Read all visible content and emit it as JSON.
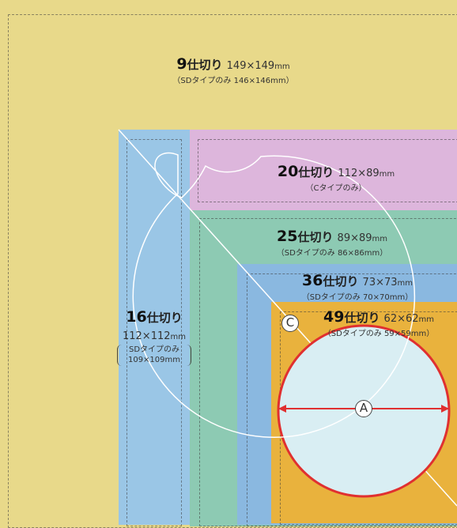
{
  "panels": [
    {
      "id": "p9",
      "count": "9",
      "label": "仕切り",
      "size": "149×149",
      "unit": "mm",
      "note": "（SDタイプのみ 146×146mm）",
      "color": "#ecdc86"
    },
    {
      "id": "p20",
      "count": "20",
      "label": "仕切り",
      "size": "112×89",
      "unit": "mm",
      "note": "（Cタイプのみ）",
      "color": "#ddb6dc"
    },
    {
      "id": "p25",
      "count": "25",
      "label": "仕切り",
      "size": "89×89",
      "unit": "mm",
      "note": "（SDタイプのみ 86×86mm）",
      "color": "#8dcab3"
    },
    {
      "id": "p36",
      "count": "36",
      "label": "仕切り",
      "size": "73×73",
      "unit": "mm",
      "note": "（SDタイプのみ 70×70mm）",
      "color": "#8ab8e0"
    },
    {
      "id": "p49",
      "count": "49",
      "label": "仕切り",
      "size": "62×62",
      "unit": "mm",
      "note": "（SDタイプのみ 59×59mm）",
      "color": "#e9b23d"
    },
    {
      "id": "p16",
      "count": "16",
      "label": "仕切り",
      "size": "112×112",
      "unit": "mm",
      "note1": "SDタイプのみ",
      "note2": "109×109mm",
      "color": "#9ac6e6"
    }
  ],
  "markers": {
    "a": "A",
    "c": "C"
  },
  "colors": {
    "disc_fill": "#d9eef3",
    "disc_stroke": "#e03030",
    "outline": "#ffffff"
  }
}
